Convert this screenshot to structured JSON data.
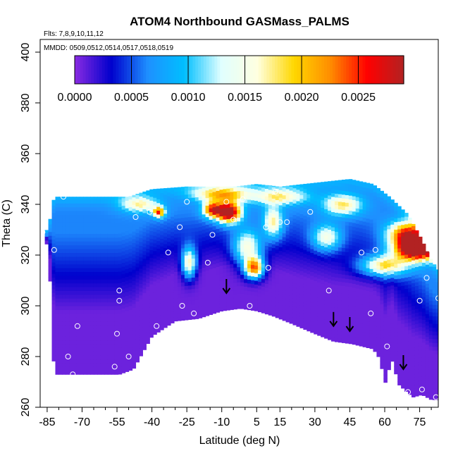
{
  "chart_data": {
    "type": "heatmap",
    "title": "ATOM4 Northbound GASMass_PALMS",
    "flights_label": "Flts: 7,8,9,10,11,12",
    "dates_label": "MMDD: 0509,0512,0514,0517,0518,0519",
    "xlabel": "Latitude (deg N)",
    "ylabel": "Theta (C)",
    "xlim": [
      -88,
      83
    ],
    "ylim": [
      260,
      405
    ],
    "xticks": [
      -85,
      -70,
      -55,
      -40,
      -25,
      -10,
      5,
      15,
      30,
      45,
      60,
      75
    ],
    "yticks": [
      260,
      280,
      300,
      320,
      340,
      360,
      380,
      400
    ],
    "colorbar": {
      "range": [
        0,
        0.0029
      ],
      "ticks": [
        "0.0000",
        "0.0005",
        "0.0010",
        "0.0015",
        "0.0020",
        "0.0025"
      ],
      "tick_values": [
        0,
        0.0005,
        0.001,
        0.0015,
        0.002,
        0.0025
      ],
      "colors": [
        "#8a2be2",
        "#0000cd",
        "#1e90ff",
        "#00bfff",
        "#e0ffff",
        "#ffffe0",
        "#ffd700",
        "#ff8c00",
        "#ff0000",
        "#b22222"
      ]
    },
    "upper_boundary": [
      [
        -86,
        328
      ],
      [
        -84,
        333
      ],
      [
        -82,
        343
      ],
      [
        -60,
        343
      ],
      [
        -50,
        343
      ],
      [
        -40,
        346
      ],
      [
        -25,
        347
      ],
      [
        -10,
        347
      ],
      [
        -5,
        347
      ],
      [
        5,
        348
      ],
      [
        15,
        347
      ],
      [
        25,
        348
      ],
      [
        35,
        349
      ],
      [
        45,
        350
      ],
      [
        55,
        348
      ],
      [
        62,
        343
      ],
      [
        70,
        336
      ],
      [
        76,
        326
      ],
      [
        80,
        318
      ],
      [
        83,
        314
      ]
    ],
    "lower_boundary": [
      [
        -86,
        330
      ],
      [
        -84,
        315
      ],
      [
        -82,
        273
      ],
      [
        -70,
        273
      ],
      [
        -54,
        273
      ],
      [
        -48,
        275
      ],
      [
        -40,
        288
      ],
      [
        -30,
        294
      ],
      [
        -20,
        295
      ],
      [
        -10,
        298
      ],
      [
        -2,
        299
      ],
      [
        5,
        298
      ],
      [
        12,
        296
      ],
      [
        20,
        293
      ],
      [
        30,
        289
      ],
      [
        38,
        286
      ],
      [
        46,
        285
      ],
      [
        55,
        283
      ],
      [
        58,
        279
      ],
      [
        60,
        269
      ],
      [
        63,
        279
      ],
      [
        66,
        269
      ],
      [
        72,
        264
      ],
      [
        76,
        265
      ],
      [
        80,
        263
      ],
      [
        83,
        263
      ]
    ],
    "hotspots": [
      {
        "lat": -7,
        "theta": 337,
        "value": 0.0027,
        "dlat": 5,
        "dtheta": 4
      },
      {
        "lat": -14,
        "theta": 338,
        "value": 0.0019,
        "dlat": 4,
        "dtheta": 3
      },
      {
        "lat": 4,
        "theta": 315,
        "value": 0.0021,
        "dlat": 4,
        "dtheta": 4
      },
      {
        "lat": 1,
        "theta": 323,
        "value": 0.0013,
        "dlat": 6,
        "dtheta": 7
      },
      {
        "lat": -37,
        "theta": 337,
        "value": 0.0018,
        "dlat": 2.5,
        "dtheta": 2
      },
      {
        "lat": -24,
        "theta": 317,
        "value": 0.0015,
        "dlat": 3,
        "dtheta": 6
      },
      {
        "lat": 74,
        "theta": 322,
        "value": 0.0027,
        "dlat": 9,
        "dtheta": 4
      },
      {
        "lat": 70,
        "theta": 328,
        "value": 0.0022,
        "dlat": 8,
        "dtheta": 5
      },
      {
        "lat": 60,
        "theta": 316,
        "value": 0.0015,
        "dlat": 10,
        "dtheta": 4
      },
      {
        "lat": -10,
        "theta": 344,
        "value": 0.0014,
        "dlat": 12,
        "dtheta": 3
      },
      {
        "lat": 15,
        "theta": 343,
        "value": 0.0011,
        "dlat": 12,
        "dtheta": 3
      },
      {
        "lat": 42,
        "theta": 340,
        "value": 0.0012,
        "dlat": 8,
        "dtheta": 4
      },
      {
        "lat": 12,
        "theta": 333,
        "value": 0.0012,
        "dlat": 4,
        "dtheta": 6
      },
      {
        "lat": -45,
        "theta": 340,
        "value": 0.0011,
        "dlat": 8,
        "dtheta": 3
      },
      {
        "lat": 35,
        "theta": 327,
        "value": 0.0011,
        "dlat": 6,
        "dtheta": 5
      }
    ],
    "observations": [
      [
        -87,
        329
      ],
      [
        -82,
        322
      ],
      [
        -78,
        343
      ],
      [
        -76,
        280
      ],
      [
        -74,
        273
      ],
      [
        -72,
        292
      ],
      [
        -56,
        276
      ],
      [
        -55,
        289
      ],
      [
        -54,
        306
      ],
      [
        -54,
        302
      ],
      [
        -50,
        280
      ],
      [
        -47,
        335
      ],
      [
        -41,
        337
      ],
      [
        -38,
        292
      ],
      [
        -33,
        321
      ],
      [
        -28,
        331
      ],
      [
        -27,
        300
      ],
      [
        -25,
        341
      ],
      [
        -22,
        297
      ],
      [
        -16,
        317
      ],
      [
        -14,
        328
      ],
      [
        -8,
        341
      ],
      [
        -5,
        334
      ],
      [
        -1,
        342
      ],
      [
        2,
        300
      ],
      [
        9,
        331
      ],
      [
        10,
        315
      ],
      [
        13,
        345
      ],
      [
        15,
        333
      ],
      [
        18,
        333
      ],
      [
        28,
        337
      ],
      [
        36,
        306
      ],
      [
        50,
        321
      ],
      [
        54,
        297
      ],
      [
        56,
        322
      ],
      [
        61,
        284
      ],
      [
        70,
        266
      ],
      [
        75,
        302
      ],
      [
        76,
        267
      ],
      [
        78,
        311
      ],
      [
        80,
        322
      ],
      [
        82,
        264
      ],
      [
        83,
        303
      ]
    ],
    "arrows": [
      {
        "lat": -8,
        "theta": 305
      },
      {
        "lat": 38,
        "theta": 292
      },
      {
        "lat": 45,
        "theta": 290
      },
      {
        "lat": 68,
        "theta": 275
      }
    ]
  }
}
